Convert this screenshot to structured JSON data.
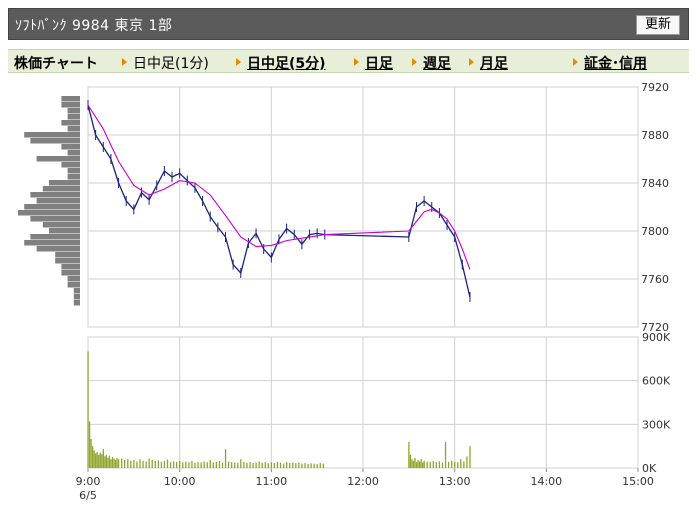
{
  "header": {
    "title": "ｿﾌﾄﾊﾞﾝｸ  9984  東京 1部",
    "update_label": "更新"
  },
  "tabs": {
    "chart_label": "株価チャート",
    "intraday_1": "日中足(1分)",
    "intraday_5": "日中足(5分)",
    "daily": "日足",
    "weekly": "週足",
    "monthly": "月足",
    "margin": "証金･信用"
  },
  "colors": {
    "price_line": "#1a237e",
    "ma_line": "#cc00cc",
    "volume_bar": "#8fa52a",
    "volume_profile": "#808080",
    "grid": "#d0d0d0",
    "tab_arrow": "#e58a00"
  },
  "chart_data": [
    {
      "type": "line",
      "y_ticks": [
        7920,
        7880,
        7840,
        7800,
        7760,
        7720
      ],
      "y_tick_labels": [
        "7920",
        "7880",
        "7840",
        "7800",
        "7760",
        "7720"
      ],
      "ylim": [
        7720,
        7920
      ],
      "x_ticks": [
        "9:00",
        "10:00",
        "11:00",
        "12:00",
        "13:00",
        "14:00",
        "15:00"
      ],
      "date_label": "6/5",
      "series": [
        {
          "x": [
            540,
            545,
            550,
            555,
            560,
            565,
            570,
            575,
            580,
            585,
            590,
            595,
            600,
            605,
            610,
            615,
            620,
            625,
            630,
            635,
            640,
            645,
            650,
            655,
            660,
            665,
            670,
            675,
            680,
            685,
            690,
            695,
            750,
            755,
            760,
            765,
            770,
            775,
            780,
            785,
            790
          ],
          "values": [
            7905,
            7880,
            7870,
            7860,
            7840,
            7825,
            7818,
            7832,
            7826,
            7838,
            7850,
            7845,
            7848,
            7842,
            7836,
            7825,
            7812,
            7803,
            7795,
            7772,
            7765,
            7790,
            7798,
            7785,
            7778,
            7793,
            7802,
            7797,
            7789,
            7797,
            7798,
            7797,
            7795,
            7820,
            7825,
            7820,
            7815,
            7805,
            7795,
            7772,
            7745
          ]
        },
        {
          "x": [
            540,
            550,
            560,
            570,
            580,
            590,
            600,
            610,
            620,
            630,
            640,
            650,
            660,
            670,
            680,
            690,
            695,
            750,
            755,
            760,
            765,
            770,
            775,
            780,
            785,
            790
          ],
          "values": [
            7905,
            7885,
            7858,
            7838,
            7830,
            7835,
            7842,
            7840,
            7830,
            7813,
            7795,
            7787,
            7788,
            7792,
            7794,
            7796,
            7797,
            7800,
            7808,
            7816,
            7818,
            7815,
            7810,
            7800,
            7785,
            7768
          ]
        }
      ]
    },
    {
      "type": "bar",
      "ylim": [
        0,
        900000
      ],
      "y_ticks": [
        900000,
        600000,
        300000,
        0
      ],
      "y_tick_labels": [
        "900K",
        "600K",
        "300K",
        "0K"
      ],
      "series": [
        {
          "x": [
            540,
            541,
            542,
            543,
            544,
            545,
            546,
            547,
            548,
            549,
            550,
            551,
            552,
            553,
            554,
            555,
            556,
            557,
            558,
            559,
            560,
            562,
            564,
            566,
            568,
            570,
            572,
            574,
            576,
            578,
            580,
            582,
            584,
            586,
            588,
            590,
            592,
            594,
            596,
            598,
            600,
            602,
            604,
            606,
            608,
            610,
            612,
            614,
            616,
            618,
            620,
            622,
            624,
            626,
            628,
            630,
            632,
            634,
            636,
            638,
            640,
            642,
            644,
            646,
            648,
            650,
            652,
            654,
            656,
            658,
            660,
            662,
            664,
            666,
            668,
            670,
            672,
            674,
            676,
            678,
            680,
            682,
            684,
            686,
            688,
            690,
            692,
            694,
            750,
            751,
            752,
            753,
            754,
            755,
            756,
            757,
            758,
            759,
            760,
            762,
            764,
            766,
            768,
            770,
            772,
            774,
            776,
            778,
            780,
            782,
            784,
            786,
            788,
            790
          ],
          "values": [
            800000,
            320000,
            200000,
            150000,
            120000,
            100000,
            110000,
            90000,
            105000,
            95000,
            130000,
            80000,
            90000,
            70000,
            85000,
            60000,
            75000,
            65000,
            55000,
            70000,
            60000,
            65000,
            55000,
            60000,
            50000,
            55000,
            45000,
            60000,
            50000,
            45000,
            65000,
            55000,
            48000,
            52000,
            44000,
            50000,
            58000,
            40000,
            46000,
            42000,
            48000,
            38000,
            44000,
            40000,
            50000,
            36000,
            42000,
            38000,
            45000,
            40000,
            55000,
            38000,
            42000,
            48000,
            36000,
            130000,
            44000,
            40000,
            38000,
            35000,
            60000,
            42000,
            36000,
            40000,
            34000,
            38000,
            45000,
            36000,
            40000,
            32000,
            38000,
            34000,
            42000,
            36000,
            30000,
            40000,
            34000,
            38000,
            32000,
            36000,
            30000,
            34000,
            28000,
            32000,
            30000,
            28000,
            34000,
            30000,
            180000,
            90000,
            60000,
            50000,
            70000,
            40000,
            55000,
            45000,
            60000,
            38000,
            50000,
            44000,
            42000,
            48000,
            40000,
            46000,
            38000,
            180000,
            42000,
            50000,
            44000,
            40000,
            60000,
            45000,
            80000,
            150000
          ]
        }
      ]
    },
    {
      "type": "bar",
      "orientation": "horizontal",
      "categories": [
        7910,
        7905,
        7900,
        7895,
        7890,
        7885,
        7880,
        7875,
        7870,
        7865,
        7860,
        7855,
        7850,
        7845,
        7840,
        7835,
        7830,
        7825,
        7820,
        7815,
        7810,
        7805,
        7800,
        7795,
        7790,
        7785,
        7780,
        7775,
        7770,
        7765,
        7760,
        7755,
        7750,
        7745,
        7740
      ],
      "values": [
        0.3,
        0.3,
        0.2,
        0.2,
        0.3,
        0.2,
        0.9,
        0.8,
        0.3,
        0.2,
        0.7,
        0.3,
        0.2,
        0.2,
        0.5,
        0.6,
        0.8,
        0.7,
        0.9,
        1.0,
        0.8,
        0.6,
        0.5,
        0.8,
        0.9,
        0.7,
        0.4,
        0.4,
        0.3,
        0.3,
        0.2,
        0.2,
        0.1,
        0.1,
        0.1
      ]
    }
  ]
}
